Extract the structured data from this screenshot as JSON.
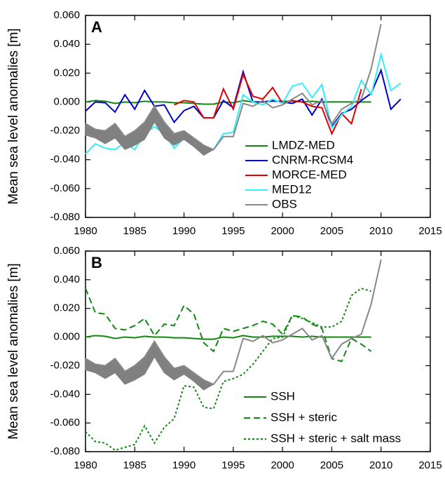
{
  "chart_data": [
    {
      "type": "line",
      "panel_label": "A",
      "ylabel": "Mean sea level anomalies [m]",
      "legend": "lower right",
      "x": [
        1980,
        1981,
        1982,
        1983,
        1984,
        1985,
        1986,
        1987,
        1988,
        1989,
        1990,
        1991,
        1992,
        1993,
        1994,
        1995,
        1996,
        1997,
        1998,
        1999,
        2000,
        2001,
        2002,
        2003,
        2004,
        2005,
        2006,
        2007,
        2008,
        2009,
        2010,
        2011,
        2012
      ],
      "xlim": [
        1980,
        2015
      ],
      "xticks": [
        1980,
        1985,
        1990,
        1995,
        2000,
        2005,
        2010,
        2015
      ],
      "ylim": [
        -0.08,
        0.06
      ],
      "yticks": [
        {
          "value": -0.08,
          "label": "-0.080"
        },
        {
          "value": -0.06,
          "label": "-0.060"
        },
        {
          "value": -0.04,
          "label": "-0.040"
        },
        {
          "value": -0.02,
          "label": "-0.020"
        },
        {
          "value": 0,
          "label": "0.000"
        },
        {
          "value": 0.02,
          "label": "0.020"
        },
        {
          "value": 0.04,
          "label": "0.040"
        },
        {
          "value": 0.06,
          "label": "0.060"
        }
      ],
      "series": [
        {
          "name": "LMDZ-MED",
          "color": "#118811",
          "dash": "solid",
          "values": [
            0,
            0.001,
            0.0005,
            -0.001,
            0,
            -0.0005,
            0.0005,
            0,
            0,
            -0.0005,
            -0.0005,
            -0.001,
            -0.0015,
            -0.0015,
            0,
            -0.0005,
            0.001,
            0,
            0,
            0.0005,
            0.0005,
            0.0005,
            0,
            0.0005,
            0,
            0,
            0,
            0,
            0,
            0,
            null,
            null,
            null
          ]
        },
        {
          "name": "CNRM-RCSM4",
          "color": "#0000cc",
          "dash": "solid",
          "values": [
            -0.0063,
            0,
            -0.0005,
            -0.007,
            0.005,
            -0.005,
            0.008,
            -0.003,
            -0.002,
            -0.014,
            -0.006,
            -0.003,
            -0.011,
            -0.011,
            0.001,
            -0.004,
            0.021,
            0,
            0,
            0.001,
            0,
            -0.001,
            0.002,
            -0.009,
            0.002,
            -0.017,
            -0.008,
            -0.005,
            0.001,
            0.006,
            0.022,
            -0.005,
            0.002
          ]
        },
        {
          "name": "MORCE-MED",
          "color": "#e00000",
          "dash": "solid",
          "values": [
            null,
            null,
            null,
            null,
            null,
            null,
            null,
            null,
            null,
            -0.002,
            0.001,
            0,
            -0.011,
            -0.011,
            0.009,
            -0.005,
            0.019,
            0.004,
            0.002,
            0.01,
            -0.001,
            0.001,
            0,
            -0.003,
            -0.004,
            -0.022,
            -0.008,
            -0.015,
            0.009,
            null,
            null,
            null,
            null
          ]
        },
        {
          "name": "MED12",
          "color": "#33eeff",
          "dash": "solid",
          "values": [
            -0.036,
            -0.029,
            -0.032,
            -0.033,
            -0.028,
            -0.033,
            -0.022,
            -0.017,
            -0.022,
            -0.032,
            -0.025,
            -0.03,
            -0.033,
            -0.033,
            -0.022,
            -0.021,
            0.005,
            0,
            -0.002,
            0.002,
            -0.001,
            0.011,
            0.013,
            0.003,
            0.012,
            -0.018,
            -0.009,
            -0.003,
            0.015,
            0.005,
            0.033,
            0.008,
            0.013
          ]
        },
        {
          "name": "OBS",
          "color": "#888888",
          "dash": "solid",
          "values": [
            -0.015,
            -0.019,
            -0.02,
            -0.015,
            -0.024,
            -0.02,
            -0.014,
            -0.003,
            -0.014,
            -0.022,
            -0.02,
            -0.025,
            -0.03,
            -0.033,
            -0.024,
            -0.024,
            -0.001,
            -0.003,
            0.001,
            -0.004,
            -0.002,
            0.002,
            0.006,
            -0.002,
            0.001,
            -0.015,
            -0.005,
            -0.001,
            0.002,
            0.023,
            0.054,
            null,
            null
          ],
          "band_low": [
            -0.023,
            -0.025,
            -0.029,
            -0.025,
            -0.033,
            -0.03,
            -0.026,
            -0.014,
            -0.025,
            -0.03,
            -0.026,
            -0.031,
            -0.037,
            -0.033,
            null,
            null,
            null,
            null,
            null,
            null,
            null,
            null,
            null,
            null,
            null,
            null,
            null,
            null,
            null,
            null,
            null,
            null,
            null
          ]
        }
      ]
    },
    {
      "type": "line",
      "panel_label": "B",
      "ylabel": "Mean sea level anomalies [m]",
      "legend": "lower right",
      "x": [
        1980,
        1981,
        1982,
        1983,
        1984,
        1985,
        1986,
        1987,
        1988,
        1989,
        1990,
        1991,
        1992,
        1993,
        1994,
        1995,
        1996,
        1997,
        1998,
        1999,
        2000,
        2001,
        2002,
        2003,
        2004,
        2005,
        2006,
        2007,
        2008,
        2009,
        2010
      ],
      "xlim": [
        1980,
        2015
      ],
      "xticks": [
        1980,
        1985,
        1990,
        1995,
        2000,
        2005,
        2010,
        2015
      ],
      "ylim": [
        -0.08,
        0.06
      ],
      "yticks": [
        {
          "value": -0.08,
          "label": "-0.080"
        },
        {
          "value": -0.06,
          "label": "-0.060"
        },
        {
          "value": -0.04,
          "label": "-0.040"
        },
        {
          "value": -0.02,
          "label": "-0.020"
        },
        {
          "value": 0,
          "label": "0.000"
        },
        {
          "value": 0.02,
          "label": "0.020"
        },
        {
          "value": 0.04,
          "label": "0.040"
        },
        {
          "value": 0.06,
          "label": "0.060"
        }
      ],
      "series": [
        {
          "name": "SSH",
          "color": "#118811",
          "dash": "solid",
          "values": [
            0,
            0.001,
            0.0005,
            -0.001,
            0,
            -0.0005,
            0.0005,
            0,
            0,
            -0.0005,
            -0.0005,
            -0.001,
            -0.0015,
            -0.0015,
            0,
            -0.0005,
            0.001,
            0,
            0,
            0.0005,
            0.0005,
            0.0005,
            0,
            0.0005,
            0,
            0,
            0,
            0,
            0,
            0,
            null
          ]
        },
        {
          "name": "SSH + steric",
          "color": "#118811",
          "dash": "dashed",
          "values": [
            0.034,
            0.017,
            0.016,
            0.006,
            0.005,
            0.008,
            0.013,
            0.001,
            0.009,
            0.008,
            0.022,
            0.016,
            -0.004,
            -0.01,
            0.006,
            0.004,
            0.006,
            0.008,
            0.011,
            0.009,
            0.002,
            0.015,
            0.014,
            0.009,
            0.006,
            -0.015,
            -0.017,
            -0.001,
            -0.005,
            -0.01,
            null
          ]
        },
        {
          "name": "SSH + steric + salt mass",
          "color": "#118811",
          "dash": "dotted",
          "values": [
            -0.066,
            -0.073,
            -0.074,
            -0.079,
            -0.077,
            -0.075,
            -0.062,
            -0.074,
            -0.063,
            -0.057,
            -0.034,
            -0.035,
            -0.049,
            -0.05,
            -0.031,
            -0.029,
            -0.026,
            -0.019,
            -0.01,
            -0.001,
            0,
            0.015,
            0.013,
            0.01,
            0.007,
            0.007,
            0.011,
            0.029,
            0.034,
            0.032,
            null
          ]
        },
        {
          "color": "#888888",
          "dash": "solid",
          "values": [
            -0.015,
            -0.019,
            -0.02,
            -0.015,
            -0.024,
            -0.02,
            -0.014,
            -0.003,
            -0.014,
            -0.022,
            -0.02,
            -0.025,
            -0.03,
            -0.033,
            -0.024,
            -0.024,
            -0.001,
            -0.003,
            0.001,
            -0.004,
            -0.002,
            0.002,
            0.006,
            -0.002,
            0.001,
            -0.015,
            -0.005,
            -0.001,
            0.002,
            0.023,
            0.054
          ],
          "band_low": [
            -0.023,
            -0.025,
            -0.029,
            -0.025,
            -0.033,
            -0.03,
            -0.026,
            -0.014,
            -0.025,
            -0.03,
            -0.026,
            -0.031,
            -0.037,
            -0.033,
            null,
            null,
            null,
            null,
            null,
            null,
            null,
            null,
            null,
            null,
            null,
            null,
            null,
            null,
            null,
            null,
            null
          ]
        }
      ]
    }
  ]
}
